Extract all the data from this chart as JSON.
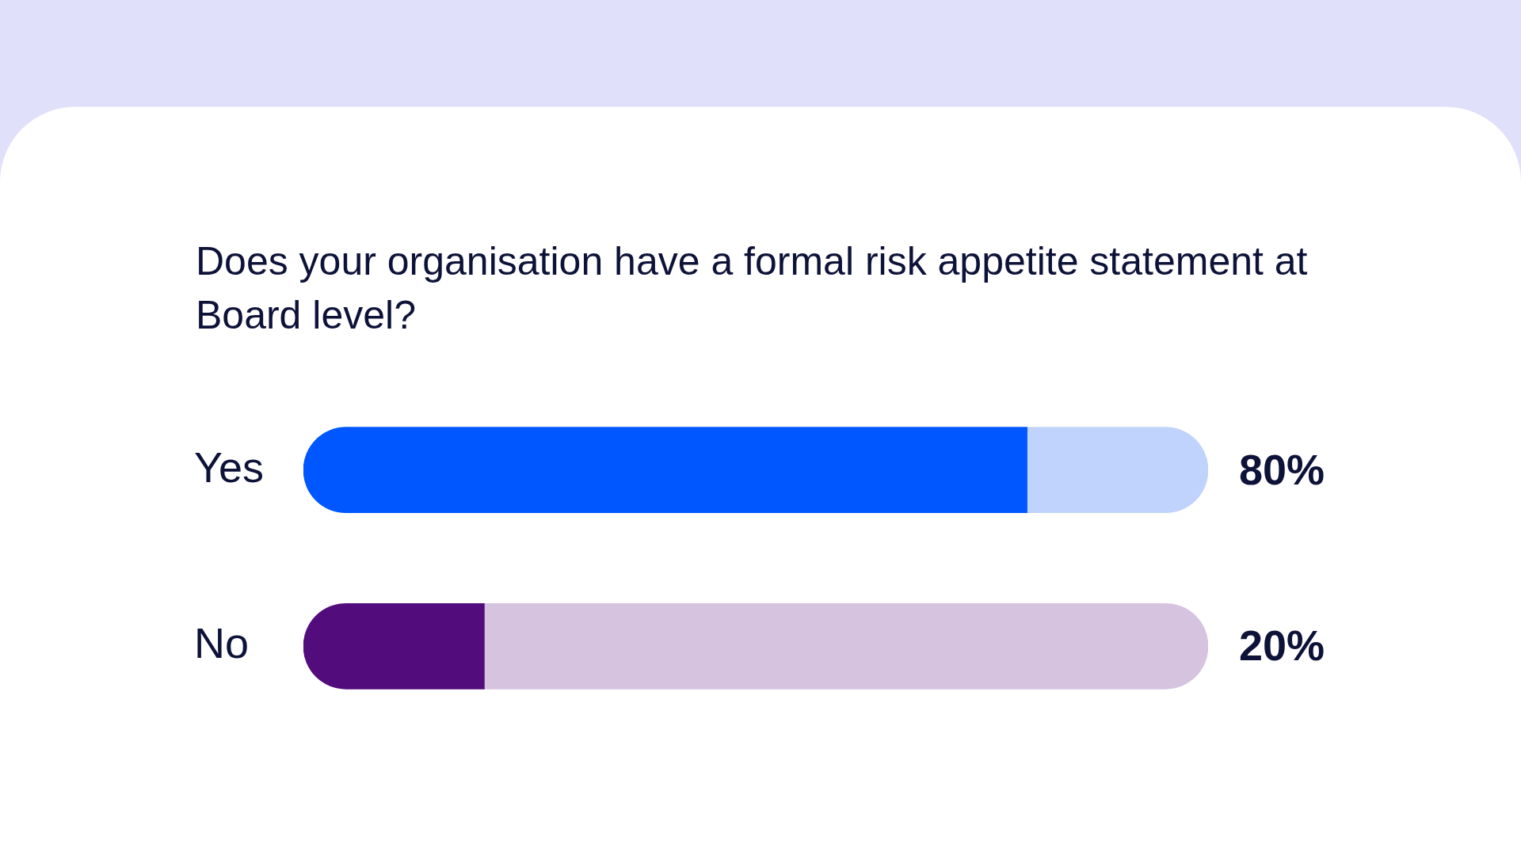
{
  "chart_data": {
    "type": "bar",
    "orientation": "horizontal",
    "stacked": true,
    "title": "Does your organisation have a formal risk appetite statement at Board level?",
    "categories": [
      "Yes",
      "No"
    ],
    "series": [
      {
        "colors": [
          "#0057ff",
          "#520c7c"
        ],
        "values": [
          80,
          20
        ],
        "value_labels": [
          "80%",
          "20%"
        ]
      },
      {
        "colors": [
          "#c0d3fc",
          "#d6c3e0"
        ],
        "values": [
          20,
          80
        ]
      }
    ],
    "xlim": [
      0,
      100
    ],
    "tick_labels": "y"
  }
}
